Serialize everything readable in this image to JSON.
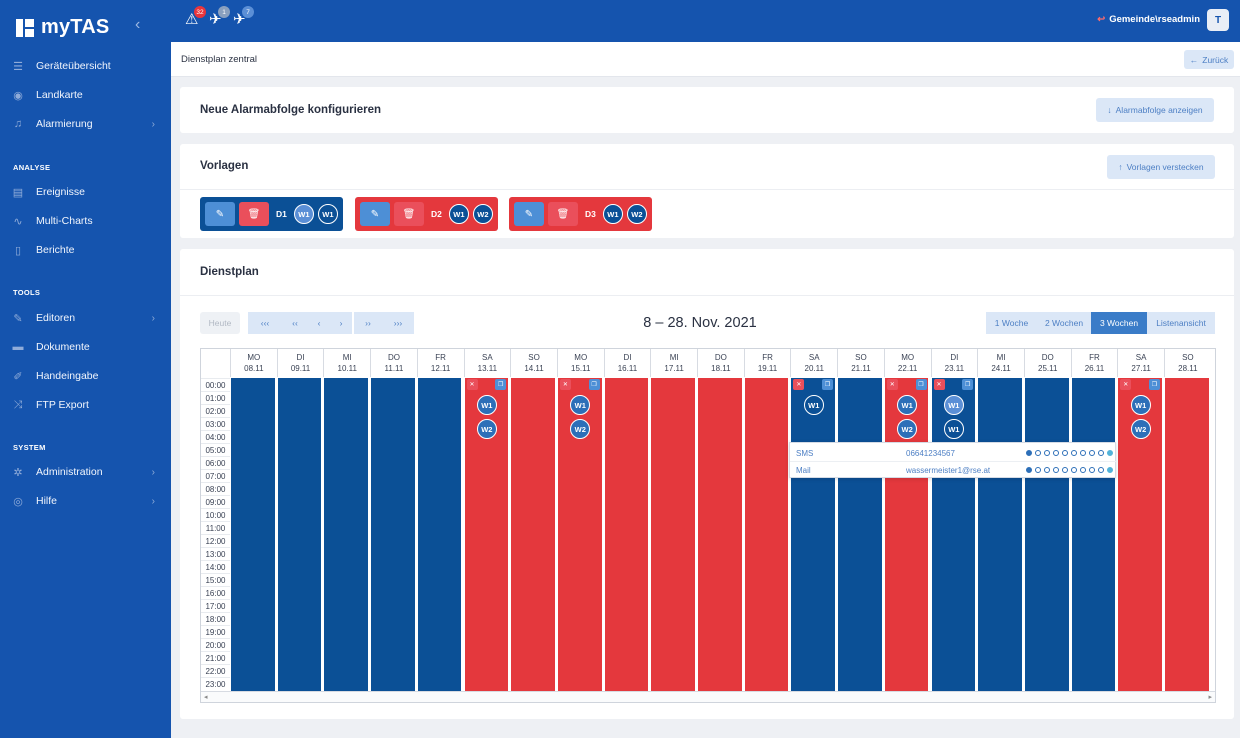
{
  "app": {
    "name": "myTAS"
  },
  "sidebar": {
    "main": [
      {
        "label": "Geräteübersicht",
        "icon": "list-icon"
      },
      {
        "label": "Landkarte",
        "icon": "map-pin-icon"
      },
      {
        "label": "Alarmierung",
        "icon": "bell-icon"
      }
    ],
    "sections": [
      {
        "title": "ANALYSE",
        "items": [
          {
            "label": "Ereignisse",
            "icon": "table-icon"
          },
          {
            "label": "Multi-Charts",
            "icon": "chart-line-icon"
          },
          {
            "label": "Berichte",
            "icon": "book-icon"
          }
        ]
      },
      {
        "title": "TOOLS",
        "items": [
          {
            "label": "Editoren",
            "icon": "edit-icon"
          },
          {
            "label": "Dokumente",
            "icon": "folder-icon"
          },
          {
            "label": "Handeingabe",
            "icon": "pencil-icon"
          },
          {
            "label": "FTP Export",
            "icon": "shuffle-icon"
          }
        ]
      },
      {
        "title": "SYSTEM",
        "items": [
          {
            "label": "Administration",
            "icon": "gear-icon"
          },
          {
            "label": "Hilfe",
            "icon": "lifebuoy-icon"
          }
        ]
      }
    ]
  },
  "topbar": {
    "alerts": [
      {
        "count": "32",
        "color": "#e8353c"
      },
      {
        "count": "1",
        "color": "#8aa0bf"
      },
      {
        "count": "7",
        "color": "#5b8fd6"
      }
    ],
    "user": "Gemeinde\\rseadmin",
    "avatar": "T"
  },
  "breadcrumb": "Dienstplan zentral",
  "back_button": "Zurück",
  "card_alarm": {
    "title": "Neue Alarmabfolge konfigurieren",
    "button": "Alarmabfolge anzeigen"
  },
  "card_vorlagen": {
    "title": "Vorlagen",
    "button": "Vorlagen verstecken",
    "templates": [
      {
        "label": "D1",
        "color": "#0b5096",
        "workers": [
          "W1",
          "W1"
        ]
      },
      {
        "label": "D2",
        "color": "#e4383d",
        "workers": [
          "W1",
          "W2"
        ]
      },
      {
        "label": "D3",
        "color": "#e4383d",
        "workers": [
          "W1",
          "W2"
        ]
      }
    ]
  },
  "dienstplan": {
    "title": "Dienstplan",
    "today": "Heute",
    "nav": [
      "‹‹‹",
      "‹‹",
      "‹",
      "›",
      "››",
      "›››"
    ],
    "range": "8 – 28. Nov. 2021",
    "views": [
      "1 Woche",
      "2 Wochen",
      "3 Wochen",
      "Listenansicht"
    ],
    "active_view": "3 Wochen",
    "days": [
      {
        "dow": "MO",
        "date": "08.11",
        "color": "#0b5096",
        "marks": []
      },
      {
        "dow": "DI",
        "date": "09.11",
        "color": "#0b5096",
        "marks": []
      },
      {
        "dow": "MI",
        "date": "10.11",
        "color": "#0b5096",
        "marks": []
      },
      {
        "dow": "DO",
        "date": "11.11",
        "color": "#0b5096",
        "marks": []
      },
      {
        "dow": "FR",
        "date": "12.11",
        "color": "#0b5096",
        "marks": []
      },
      {
        "dow": "SA",
        "date": "13.11",
        "color": "#e4383d",
        "actions": true,
        "marks": [
          "W1",
          "W2"
        ]
      },
      {
        "dow": "SO",
        "date": "14.11",
        "color": "#e4383d",
        "marks": []
      },
      {
        "dow": "MO",
        "date": "15.11",
        "color": "#e4383d",
        "actions": true,
        "marks": [
          "W1",
          "W2"
        ]
      },
      {
        "dow": "DI",
        "date": "16.11",
        "color": "#e4383d",
        "marks": []
      },
      {
        "dow": "MI",
        "date": "17.11",
        "color": "#e4383d",
        "marks": []
      },
      {
        "dow": "DO",
        "date": "18.11",
        "color": "#e4383d",
        "marks": []
      },
      {
        "dow": "FR",
        "date": "19.11",
        "color": "#e4383d",
        "marks": []
      },
      {
        "dow": "SA",
        "date": "20.11",
        "color": "#0b5096",
        "actions": true,
        "marks": [
          "W1"
        ]
      },
      {
        "dow": "SO",
        "date": "21.11",
        "color": "#0b5096",
        "marks": []
      },
      {
        "dow": "MO",
        "date": "22.11",
        "color": "#e4383d",
        "actions": true,
        "marks": [
          "W1",
          "W2"
        ]
      },
      {
        "dow": "DI",
        "date": "23.11",
        "color": "#0b5096",
        "actions": true,
        "marks": [
          "W1",
          "W1"
        ]
      },
      {
        "dow": "MI",
        "date": "24.11",
        "color": "#0b5096",
        "marks": []
      },
      {
        "dow": "DO",
        "date": "25.11",
        "color": "#0b5096",
        "marks": []
      },
      {
        "dow": "FR",
        "date": "26.11",
        "color": "#0b5096",
        "marks": []
      },
      {
        "dow": "SA",
        "date": "27.11",
        "color": "#e4383d",
        "actions": true,
        "marks": [
          "W1",
          "W2"
        ]
      },
      {
        "dow": "SO",
        "date": "28.11",
        "color": "#e4383d",
        "marks": []
      }
    ],
    "hours": [
      "00:00",
      "01:00",
      "02:00",
      "03:00",
      "04:00",
      "05:00",
      "06:00",
      "07:00",
      "08:00",
      "09:00",
      "10:00",
      "11:00",
      "12:00",
      "13:00",
      "14:00",
      "15:00",
      "16:00",
      "17:00",
      "18:00",
      "19:00",
      "20:00",
      "21:00",
      "22:00",
      "23:00"
    ],
    "popup": [
      {
        "channel": "SMS",
        "value": "06641234567"
      },
      {
        "channel": "Mail",
        "value": "wassermeister1@rse.at"
      }
    ]
  }
}
